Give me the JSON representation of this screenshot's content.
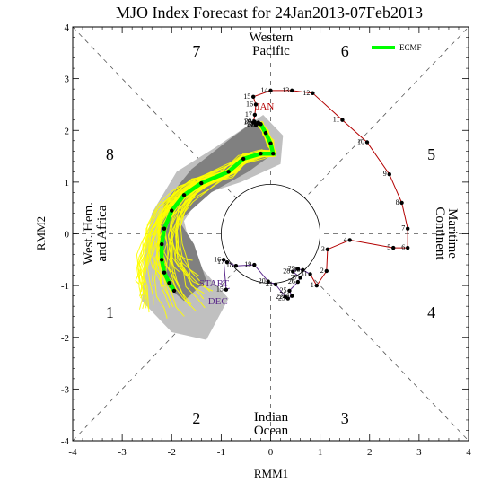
{
  "chart_data": {
    "type": "line",
    "title": "MJO Index Forecast for 24Jan2013-07Feb2013",
    "xlabel": "RMM1",
    "ylabel": "RMM2",
    "xlim": [
      -4,
      4
    ],
    "ylim": [
      -4,
      4
    ],
    "xticks": [
      "-4",
      "-3",
      "-2",
      "-1",
      "0",
      "1",
      "2",
      "3",
      "4"
    ],
    "yticks": [
      "-4",
      "-3",
      "-2",
      "-1",
      "0",
      "1",
      "2",
      "3",
      "4"
    ],
    "grid": false,
    "legend_position": "top-right",
    "phases": [
      {
        "label": "1",
        "x": -3.25,
        "y": -1.5
      },
      {
        "label": "2",
        "x": -1.5,
        "y": -3.55
      },
      {
        "label": "3",
        "x": 1.5,
        "y": -3.55
      },
      {
        "label": "4",
        "x": 3.25,
        "y": -1.5
      },
      {
        "label": "5",
        "x": 3.25,
        "y": 1.55
      },
      {
        "label": "6",
        "x": 1.5,
        "y": 3.55
      },
      {
        "label": "7",
        "x": -1.5,
        "y": 3.55
      },
      {
        "label": "8",
        "x": -3.25,
        "y": 1.55
      }
    ],
    "regions": [
      {
        "lines": [
          "Western",
          "Pacific"
        ]
      },
      {
        "lines": [
          "Indian",
          "Ocean"
        ]
      },
      {
        "lines": [
          "Maritime",
          "Continent"
        ]
      },
      {
        "lines": [
          "West. Hem.",
          "and Africa"
        ]
      }
    ],
    "observed": {
      "december": {
        "label": "DEC",
        "color": "#5b2a8c",
        "points": [
          {
            "day": "START",
            "x": -0.83,
            "y": -1.05
          },
          {
            "day": "15",
            "x": -0.9,
            "y": -1.08
          },
          {
            "day": "16",
            "x": -0.95,
            "y": -0.5
          },
          {
            "day": "17",
            "x": -0.88,
            "y": -0.55
          },
          {
            "day": "18",
            "x": -0.7,
            "y": -0.62
          },
          {
            "day": "19",
            "x": -0.33,
            "y": -0.6
          },
          {
            "day": "20",
            "x": -0.05,
            "y": -0.92
          },
          {
            "day": "21",
            "x": 0.1,
            "y": -0.98
          },
          {
            "day": "22",
            "x": 0.3,
            "y": -1.22
          },
          {
            "day": "23",
            "x": 0.35,
            "y": -1.25
          },
          {
            "day": "24",
            "x": 0.43,
            "y": -1.2
          },
          {
            "day": "25",
            "x": 0.38,
            "y": -1.1
          },
          {
            "day": "26",
            "x": 0.55,
            "y": -0.93
          },
          {
            "day": "27",
            "x": 0.6,
            "y": -0.85
          },
          {
            "day": "28",
            "x": 0.45,
            "y": -0.73
          },
          {
            "day": "29",
            "x": 0.55,
            "y": -0.68
          },
          {
            "day": "30",
            "x": 0.65,
            "y": -0.7
          },
          {
            "day": "31",
            "x": 0.8,
            "y": -0.78
          }
        ]
      },
      "january": {
        "label": "JAN",
        "color": "#b30000",
        "points": [
          {
            "day": "1",
            "x": 0.93,
            "y": -1.0
          },
          {
            "day": "2",
            "x": 1.13,
            "y": -0.72
          },
          {
            "day": "3",
            "x": 1.15,
            "y": -0.3
          },
          {
            "day": "4",
            "x": 1.6,
            "y": -0.12
          },
          {
            "day": "5",
            "x": 2.48,
            "y": -0.27
          },
          {
            "day": "6",
            "x": 2.77,
            "y": -0.27
          },
          {
            "day": "7",
            "x": 2.77,
            "y": 0.1
          },
          {
            "day": "8",
            "x": 2.65,
            "y": 0.6
          },
          {
            "day": "9",
            "x": 2.4,
            "y": 1.15
          },
          {
            "day": "10",
            "x": 1.95,
            "y": 1.77
          },
          {
            "day": "11",
            "x": 1.45,
            "y": 2.2
          },
          {
            "day": "12",
            "x": 0.85,
            "y": 2.72
          },
          {
            "day": "13",
            "x": 0.43,
            "y": 2.77
          },
          {
            "day": "14",
            "x": 0.0,
            "y": 2.77
          },
          {
            "day": "15",
            "x": -0.35,
            "y": 2.65
          },
          {
            "day": "16",
            "x": -0.3,
            "y": 2.5
          },
          {
            "day": "17",
            "x": -0.32,
            "y": 2.3
          },
          {
            "day": "18",
            "x": -0.35,
            "y": 2.15
          },
          {
            "day": "19",
            "x": -0.3,
            "y": 2.1
          },
          {
            "day": "20",
            "x": -0.33,
            "y": 2.17
          },
          {
            "day": "21",
            "x": -0.28,
            "y": 2.12
          },
          {
            "day": "22",
            "x": -0.25,
            "y": 2.15
          },
          {
            "day": "23",
            "x": -0.2,
            "y": 2.12
          }
        ]
      }
    },
    "series": [
      {
        "name": "ECMF",
        "color": "#00ff00",
        "x": [
          -0.2,
          -0.1,
          0.0,
          0.05,
          -0.2,
          -0.55,
          -0.85,
          -1.4,
          -1.75,
          -2.0,
          -2.15,
          -2.2,
          -2.2,
          -2.15,
          -2.05,
          -1.95
        ],
        "y": [
          2.12,
          1.95,
          1.75,
          1.55,
          1.55,
          1.45,
          1.2,
          0.98,
          0.75,
          0.45,
          0.1,
          -0.2,
          -0.5,
          -0.75,
          -0.95,
          -1.1
        ]
      }
    ],
    "ensemble_color": "#ffff00",
    "spread_outer": {
      "color": "#c0c0c0",
      "x": [
        -0.15,
        0.25,
        0.2,
        -0.6,
        -1.4,
        -1.75,
        -1.6,
        -1.6,
        -0.85,
        -1.3,
        -2.0,
        -2.6,
        -2.55,
        -2.4,
        -1.9,
        -1.15,
        -0.45,
        -0.15
      ],
      "y": [
        2.3,
        1.9,
        1.35,
        1.0,
        0.75,
        0.25,
        -0.35,
        -0.45,
        -1.25,
        -2.05,
        -1.9,
        -1.3,
        -0.35,
        0.4,
        1.2,
        1.65,
        2.1,
        2.3
      ]
    },
    "spread_inner": {
      "color": "#808080",
      "x": [
        -0.3,
        0.05,
        -0.45,
        -1.2,
        -1.85,
        -1.55,
        -1.3,
        -1.75,
        -2.1,
        -2.3,
        -2.15,
        -1.6,
        -0.8,
        -0.3
      ],
      "y": [
        2.2,
        1.55,
        1.2,
        0.8,
        0.25,
        -0.2,
        -0.9,
        -1.3,
        -1.0,
        -0.2,
        0.6,
        1.25,
        1.85,
        2.2
      ]
    }
  }
}
